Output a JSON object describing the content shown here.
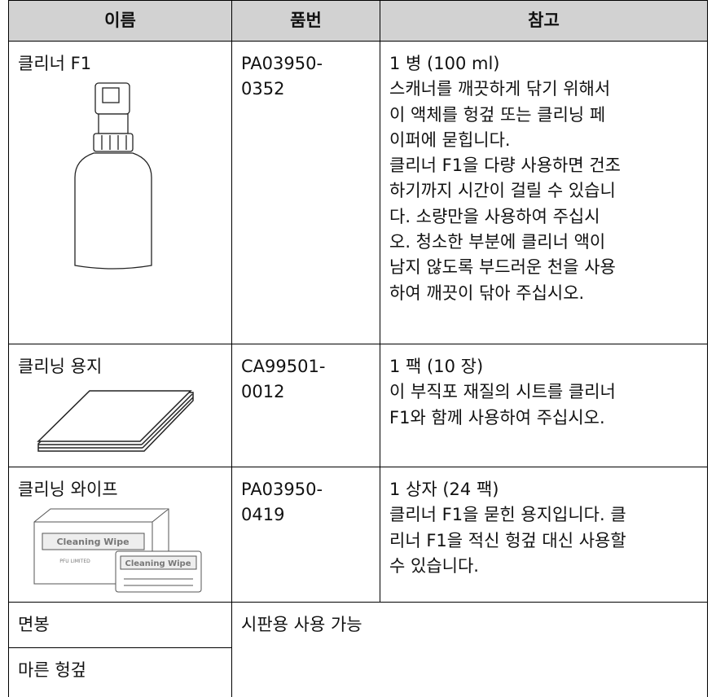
{
  "table": {
    "header": [
      "이름",
      "품번",
      "참고"
    ],
    "rows": [
      {
        "name": "클리너 F1",
        "part": [
          "PA03950-",
          "0352"
        ],
        "note": [
          "1 병 (100 ml)",
          "스캐너를 깨끗하게 닦기 위해서",
          "이 액체를 헝겊 또는 클리닝 페",
          "이퍼에 묻힙니다.",
          "클리너 F1을 다량 사용하면 건조",
          "하기까지 시간이 걸릴 수 있습니",
          "다. 소량만을 사용하여 주십시",
          "오. 청소한 부분에 클리너 액이",
          "남지 않도록 부드러운 천을 사용",
          "하여 깨끗이 닦아 주십시오."
        ]
      },
      {
        "name": "클리닝 용지",
        "part": [
          "CA99501-",
          "0012"
        ],
        "note": [
          "1 팩 (10 장)",
          "이 부직포 재질의 시트를 클리너",
          "F1와 함께 사용하여 주십시오."
        ]
      },
      {
        "name": "클리닝 와이프",
        "part": [
          "PA03950-",
          "0419"
        ],
        "note": [
          "1 상자 (24 팩)",
          "클리너 F1을 묻힌 용지입니다. 클",
          "리너 F1을 적신 헝겊 대신 사용할",
          "수 있습니다."
        ],
        "illustration_labels": [
          "Cleaning Wipe",
          "PFU LIMITED"
        ]
      },
      {
        "name": "면봉"
      },
      {
        "name": "마른 헝겊"
      }
    ],
    "shared_note": "시판용 사용 가능"
  }
}
